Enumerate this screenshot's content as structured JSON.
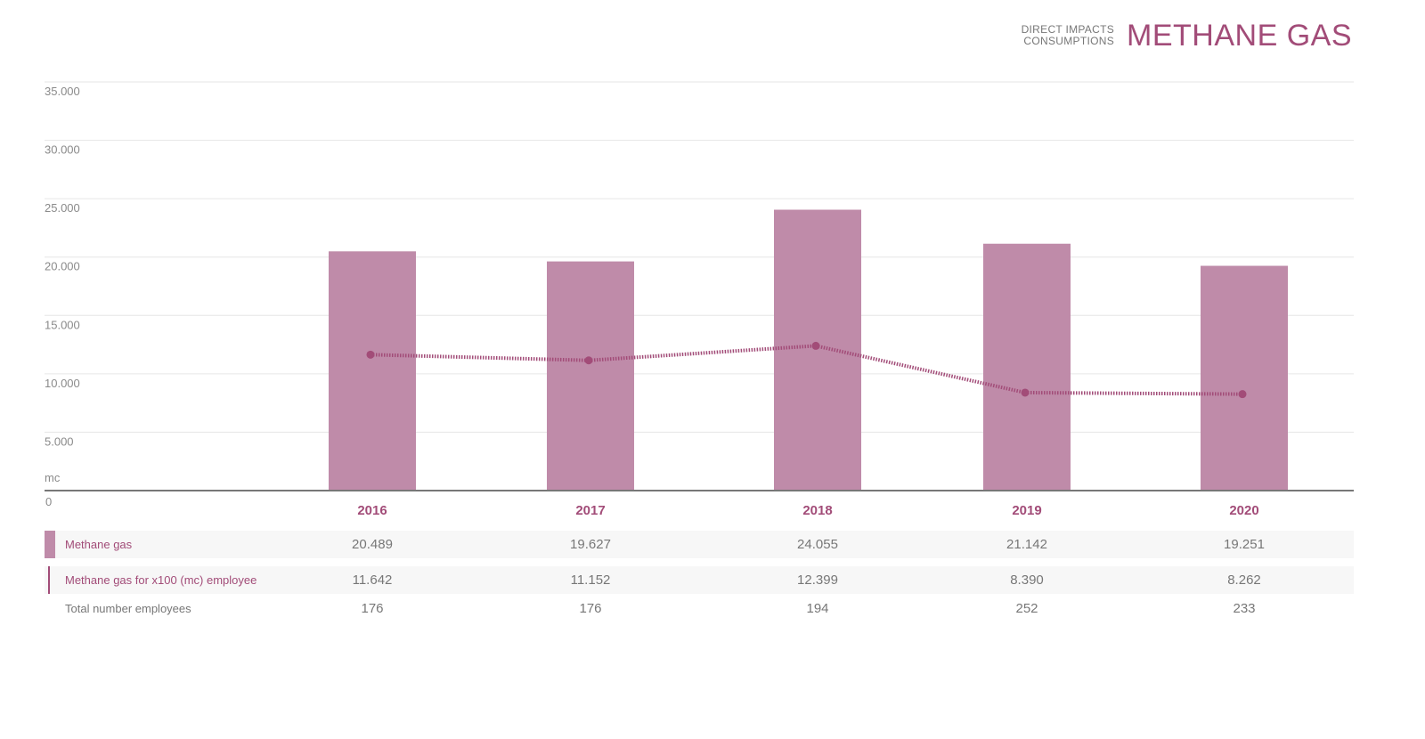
{
  "header": {
    "subtitle_line1": "DIRECT IMPACTS",
    "subtitle_line2": "CONSUMPTIONS",
    "title": "METHANE GAS"
  },
  "colors": {
    "accent": "#a24c78",
    "bar": "#bf8ba9",
    "row_bg": "#f7f7f7",
    "grid": "#e6e6e6",
    "axis": "#777777"
  },
  "chart_data": {
    "type": "bar",
    "unit_label": "mc",
    "categories": [
      "2016",
      "2017",
      "2018",
      "2019",
      "2020"
    ],
    "ylim": [
      0,
      35000
    ],
    "y_ticks": [
      "0",
      "5.000",
      "10.000",
      "15.000",
      "20.000",
      "25.000",
      "30.000",
      "35.000"
    ],
    "y_tick_values": [
      0,
      5000,
      10000,
      15000,
      20000,
      25000,
      30000,
      35000
    ],
    "grid": true,
    "series": [
      {
        "name": "Methane gas",
        "type": "bar",
        "values": [
          20489,
          19627,
          24055,
          21142,
          19251
        ],
        "labels": [
          "20.489",
          "19.627",
          "24.055",
          "21.142",
          "19.251"
        ]
      },
      {
        "name": "Methane gas for x100 (mc) employee",
        "type": "line",
        "values": [
          11642,
          11152,
          12399,
          8390,
          8262
        ],
        "labels": [
          "11.642",
          "11.152",
          "12.399",
          "8.390",
          "8.262"
        ]
      }
    ],
    "table_extra": {
      "name": "Total number employees",
      "labels": [
        "176",
        "176",
        "194",
        "252",
        "233"
      ]
    }
  }
}
